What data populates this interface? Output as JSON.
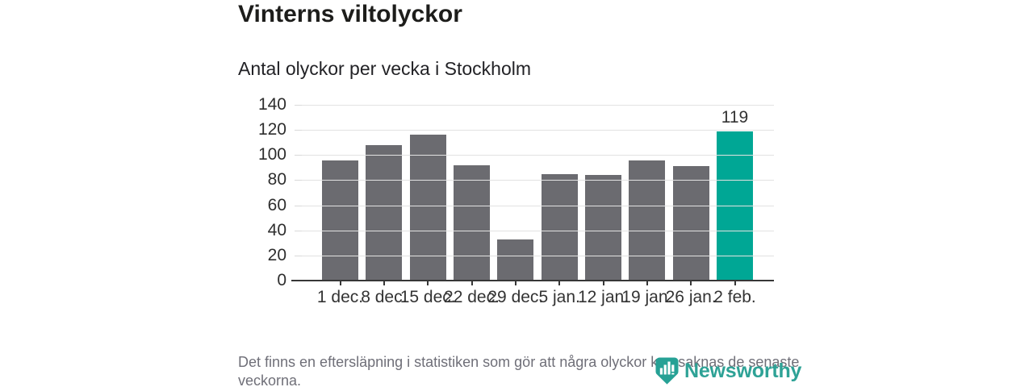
{
  "chart": {
    "title": "Vinterns viltolyckor",
    "subtitle": "Antal olyckor per vecka i Stockholm"
  },
  "chart_data": {
    "type": "bar",
    "title": "Vinterns viltolyckor",
    "subtitle": "Antal olyckor per vecka i Stockholm",
    "categories": [
      "1 dec.",
      "8 dec.",
      "15 dec.",
      "22 dec.",
      "29 dec.",
      "5 jan.",
      "12 jan.",
      "19 jan.",
      "26 jan.",
      "2 feb."
    ],
    "values": [
      96,
      108,
      116,
      92,
      33,
      85,
      84,
      96,
      91,
      119
    ],
    "highlight_index": 9,
    "value_labels": [
      {
        "index": 9,
        "text": "119"
      }
    ],
    "xlabel": "",
    "ylabel": "",
    "ylim": [
      0,
      140
    ],
    "yticks": [
      0,
      20,
      40,
      60,
      80,
      100,
      120,
      140
    ],
    "grid": true,
    "legend_position": "none",
    "colors": {
      "bar": "#6b6b70",
      "highlight": "#00a795",
      "gridline": "#e2e2e2",
      "axis": "#373737",
      "tick_label": "#333333"
    }
  },
  "footer": {
    "note": "Det finns en eftersläpning i statistiken som gör att några olyckor kan saknas de senaste veckorna."
  },
  "logo": {
    "name": "Newsworthy",
    "text_color": "#2ea296",
    "icon_color": "#26a195",
    "icon": "newsworthy-chart-pin-icon"
  }
}
